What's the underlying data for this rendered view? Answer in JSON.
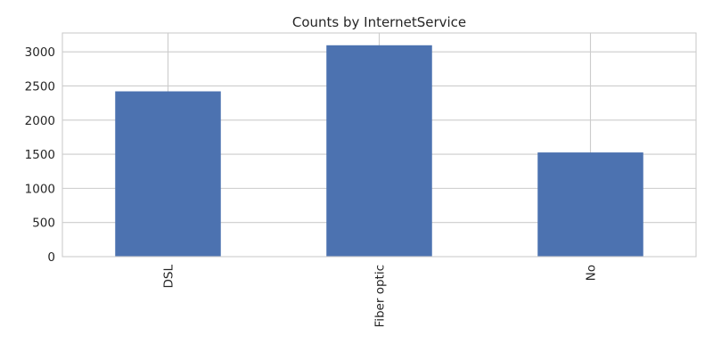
{
  "chart_data": {
    "type": "bar",
    "title": "Counts by InternetService",
    "xlabel": "",
    "ylabel": "",
    "categories": [
      "DSL",
      "Fiber optic",
      "No"
    ],
    "values": [
      2421,
      3096,
      1526
    ],
    "ylim": [
      0,
      3276
    ],
    "yticks": [
      0,
      500,
      1000,
      1500,
      2000,
      2500,
      3000
    ],
    "grid": true,
    "legend": "none",
    "bar_color": "#4c72b0"
  }
}
